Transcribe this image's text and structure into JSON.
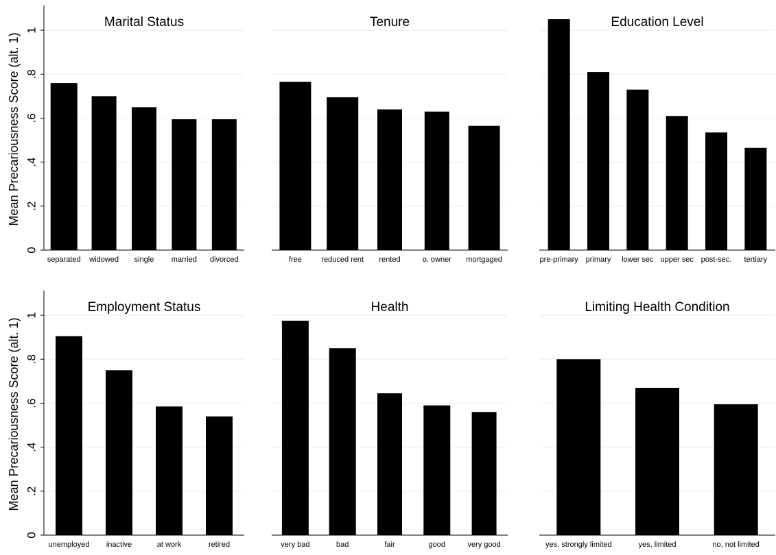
{
  "figure": {
    "ylabel": "Mean Precariousness Score (alt. 1)"
  },
  "chart_data": [
    {
      "type": "bar",
      "title": "Marital Status",
      "categories": [
        "separated",
        "widowed",
        "single",
        "married",
        "divorced"
      ],
      "values": [
        0.76,
        0.7,
        0.65,
        0.595,
        0.595
      ],
      "ylabel": "Mean Precariousness Score (alt. 1)",
      "ylim": [
        0,
        1.1
      ],
      "yticks": [
        0,
        0.2,
        0.4,
        0.6,
        0.8,
        1
      ],
      "ytick_labels": [
        "0",
        ".2",
        ".4",
        ".6",
        ".8",
        "1"
      ],
      "grid": true,
      "color": "#000000"
    },
    {
      "type": "bar",
      "title": "Tenure",
      "categories": [
        "free",
        "reduced rent",
        "rented",
        "o. owner",
        "mortgaged"
      ],
      "values": [
        0.765,
        0.695,
        0.64,
        0.63,
        0.565
      ],
      "ylim": [
        0,
        1.1
      ],
      "yticks": [
        0,
        0.2,
        0.4,
        0.6,
        0.8,
        1
      ],
      "grid": true,
      "color": "#000000"
    },
    {
      "type": "bar",
      "title": "Education Level",
      "categories": [
        "pre-primary",
        "primary",
        "lower sec",
        "upper sec",
        "post-sec.",
        "tertiary"
      ],
      "values": [
        1.05,
        0.81,
        0.73,
        0.61,
        0.535,
        0.465
      ],
      "ylim": [
        0,
        1.1
      ],
      "yticks": [
        0,
        0.2,
        0.4,
        0.6,
        0.8,
        1
      ],
      "grid": true,
      "color": "#000000"
    },
    {
      "type": "bar",
      "title": "Employment Status",
      "categories": [
        "unemployed",
        "inactive",
        "at work",
        "retired"
      ],
      "values": [
        0.905,
        0.75,
        0.585,
        0.54
      ],
      "ylabel": "Mean Precariousness Score (alt. 1)",
      "ylim": [
        0,
        1.1
      ],
      "yticks": [
        0,
        0.2,
        0.4,
        0.6,
        0.8,
        1
      ],
      "ytick_labels": [
        "0",
        ".2",
        ".4",
        ".6",
        ".8",
        "1"
      ],
      "grid": true,
      "color": "#000000"
    },
    {
      "type": "bar",
      "title": "Health",
      "categories": [
        "very bad",
        "bad",
        "fair",
        "good",
        "very good"
      ],
      "values": [
        0.975,
        0.85,
        0.645,
        0.59,
        0.56
      ],
      "ylim": [
        0,
        1.1
      ],
      "yticks": [
        0,
        0.2,
        0.4,
        0.6,
        0.8,
        1
      ],
      "grid": true,
      "color": "#000000"
    },
    {
      "type": "bar",
      "title": "Limiting Health Condition",
      "categories": [
        "yes, strongly limited",
        "yes, limited",
        "no, not limited"
      ],
      "values": [
        0.8,
        0.67,
        0.595
      ],
      "ylim": [
        0,
        1.1
      ],
      "yticks": [
        0,
        0.2,
        0.4,
        0.6,
        0.8,
        1
      ],
      "grid": true,
      "color": "#000000"
    }
  ]
}
